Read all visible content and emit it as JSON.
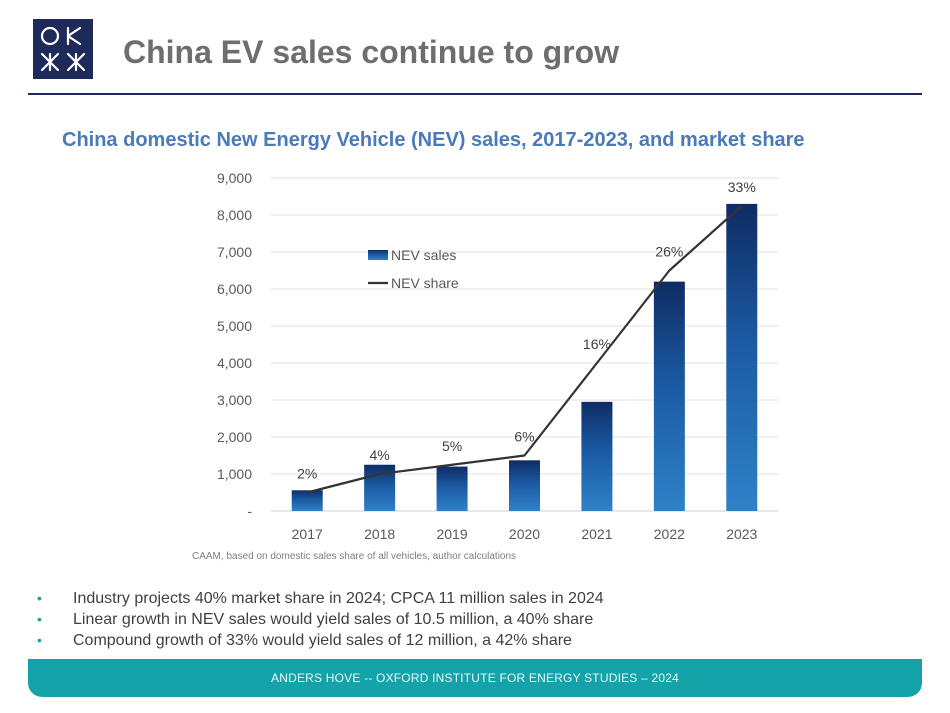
{
  "header": {
    "title": "China EV sales continue to grow",
    "logo_icon": "oxford-institute-logo-icon"
  },
  "chart_title": "China domestic New Energy Vehicle (NEV) sales, 2017-2023, and market share",
  "chart_data": {
    "type": "bar",
    "categories": [
      "2017",
      "2018",
      "2019",
      "2020",
      "2021",
      "2022",
      "2023"
    ],
    "series": [
      {
        "name": "NEV sales",
        "type": "bar",
        "values": [
          560,
          1250,
          1200,
          1370,
          2950,
          6200,
          8300
        ]
      },
      {
        "name": "NEV share",
        "type": "line",
        "values": [
          2,
          4,
          5,
          6,
          16,
          26,
          33
        ],
        "labels": [
          "2%",
          "4%",
          "5%",
          "6%",
          "16%",
          "26%",
          "33%"
        ]
      }
    ],
    "y_ticks": [
      "-",
      "1,000",
      "2,000",
      "3,000",
      "4,000",
      "5,000",
      "6,000",
      "7,000",
      "8,000",
      "9,000"
    ],
    "ylim": [
      0,
      9000
    ],
    "share_lim": [
      0,
      36
    ],
    "grid": true,
    "legend": "upper-left inside",
    "colors": {
      "bar_top": "#0f2c63",
      "bar_bottom": "#2e82c8",
      "line": "#333333",
      "grid": "#e2e2e2"
    }
  },
  "source": "CAAM, based on domestic sales share of all vehicles, author calculations",
  "bullets": [
    "Industry projects 40% market share in 2024; CPCA 11 million sales in 2024",
    "Linear growth in NEV sales would yield sales of 10.5 million, a 40% share",
    "Compound growth of 33% would yield sales of 12 million, a 42% share"
  ],
  "bullet_marker": "•",
  "footer": "ANDERS HOVE -- OXFORD INSTITUTE FOR ENERGY STUDIES – 2024",
  "colors": {
    "title": "#6e6e6e",
    "chart_title": "#4a7ab8",
    "footer_bg": "#14a3a8",
    "accent_navy": "#1e2a5a"
  }
}
